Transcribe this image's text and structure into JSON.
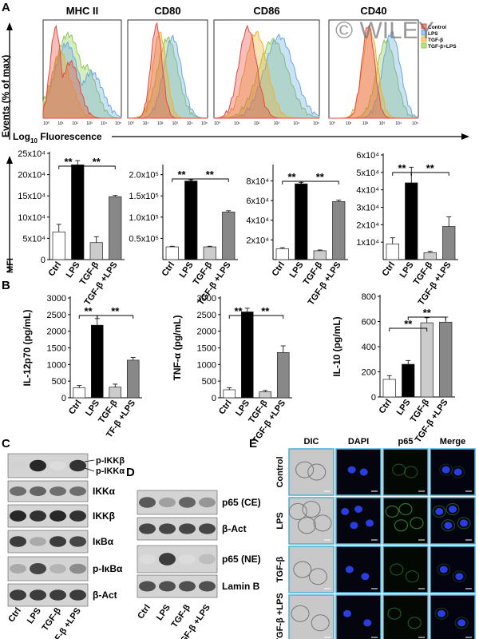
{
  "figure": {
    "panel_letters": [
      "A",
      "B",
      "C",
      "D",
      "E"
    ],
    "watermark": "© WILEY",
    "panel_a": {
      "histograms": {
        "titles": [
          "MHC II",
          "CD80",
          "CD86",
          "CD40"
        ],
        "y_label": "Events (% of max)",
        "x_label": "Log",
        "x_label_sub": "10",
        "x_label_rest": " Fluorescence",
        "tick_labels": [
          "10⁰",
          "10¹",
          "10²",
          "10³",
          "10⁴",
          "10⁵"
        ],
        "legend": [
          {
            "label": "Control",
            "color": "#e8483c"
          },
          {
            "label": "LPS",
            "color": "#6aa8e0"
          },
          {
            "label": "TGF-β",
            "color": "#f0b030"
          },
          {
            "label": "TGF-β+LPS",
            "color": "#8cc850"
          }
        ]
      },
      "mfi_label": "MFI"
    },
    "panel_c": {
      "labels": [
        "p-IKKβ",
        "p-IKKα",
        "IKKα",
        "IKKβ",
        "IκBα",
        "p-IκBα",
        "β-Act"
      ],
      "lanes": [
        "Ctrl",
        "LPS",
        "TGF-β",
        "TGF-β +LPS"
      ]
    },
    "panel_d": {
      "labels": [
        "p65 (CE)",
        "β-Act",
        "p65 (NE)",
        "Lamin B"
      ],
      "lanes": [
        "Ctrl",
        "LPS",
        "TGF-β",
        "TGF-β +LPS"
      ]
    },
    "panel_e": {
      "columns": [
        "DIC",
        "DAPI",
        "p65",
        "Merge"
      ],
      "rows": [
        "Control",
        "LPS",
        "TGF-β",
        "TGF-β +LPS"
      ]
    }
  },
  "chart_data": [
    {
      "type": "bar",
      "title": "MHC II MFI",
      "ylabel": "MFI",
      "categories": [
        "Ctrl",
        "LPS",
        "TGF-β",
        "TGF-β +LPS"
      ],
      "values": [
        65000,
        223000,
        40000,
        148000
      ],
      "errors": [
        18000,
        10000,
        14000,
        3000
      ],
      "ylim": [
        0,
        250000
      ],
      "ticks": [
        0,
        50000,
        100000,
        150000,
        200000,
        250000
      ],
      "tick_labels": [
        "0",
        "5x10⁴",
        "10x10⁴",
        "15x10⁴",
        "20x10⁴",
        "25x10⁴"
      ],
      "significance": [
        {
          "label": "**"
        },
        {
          "label": "**"
        }
      ],
      "fills": [
        "#ffffff",
        "#000000",
        "#cccccc",
        "#888888"
      ]
    },
    {
      "type": "bar",
      "title": "CD80 MFI",
      "categories": [
        "Ctrl",
        "LPS",
        "TGF-β",
        "TGF-β +LPS"
      ],
      "values": [
        30000,
        185000,
        30000,
        112000
      ],
      "errors": [
        1500,
        3000,
        1500,
        3000
      ],
      "ylim": [
        0,
        220000
      ],
      "ticks": [
        50000,
        100000,
        150000,
        200000
      ],
      "tick_labels": [
        "0.5x10⁵",
        "1.0x10⁵",
        "1.5x10⁵",
        "2.0x10⁵"
      ],
      "significance": [
        {
          "label": "**"
        },
        {
          "label": "**"
        }
      ],
      "fills": [
        "#ffffff",
        "#000000",
        "#cccccc",
        "#888888"
      ]
    },
    {
      "type": "bar",
      "title": "CD86 MFI",
      "categories": [
        "Ctrl",
        "LPS",
        "TGF-β",
        "TGF-β +LPS"
      ],
      "values": [
        11000,
        77000,
        9000,
        59000
      ],
      "errors": [
        1200,
        1500,
        800,
        1500
      ],
      "ylim": [
        0,
        95000
      ],
      "ticks": [
        20000,
        40000,
        60000,
        80000
      ],
      "tick_labels": [
        "2x10⁴",
        "4x10⁴",
        "6x10⁴",
        "8x10⁴"
      ],
      "significance": [
        {
          "label": "**"
        },
        {
          "label": "**"
        }
      ],
      "fills": [
        "#ffffff",
        "#000000",
        "#cccccc",
        "#888888"
      ]
    },
    {
      "type": "bar",
      "title": "CD40 MFI",
      "categories": [
        "Ctrl",
        "LPS",
        "TGF-β",
        "TGF-β +LPS"
      ],
      "values": [
        9000,
        44000,
        4000,
        19000
      ],
      "errors": [
        3500,
        9000,
        700,
        5500
      ],
      "ylim": [
        0,
        60000
      ],
      "ticks": [
        10000,
        20000,
        30000,
        40000,
        50000,
        60000
      ],
      "tick_labels": [
        "1x10⁴",
        "2x10⁴",
        "3x10⁴",
        "4x10⁴",
        "5x10⁴",
        "6x10⁴"
      ],
      "significance": [
        {
          "label": "**"
        },
        {
          "label": "**"
        }
      ],
      "fills": [
        "#ffffff",
        "#000000",
        "#cccccc",
        "#888888"
      ]
    },
    {
      "type": "bar",
      "title": "IL-12p70",
      "ylabel": "IL-12p70 (pg/mL)",
      "categories": [
        "Ctrl",
        "LPS",
        "TGF-β",
        "TF-β +LPS"
      ],
      "values": [
        300,
        2180,
        320,
        1130
      ],
      "errors": [
        70,
        200,
        90,
        80
      ],
      "ylim": [
        0,
        3000
      ],
      "ticks": [
        0,
        500,
        1000,
        1500,
        2000,
        2500,
        3000
      ],
      "tick_labels": [
        "0",
        "500",
        "1000",
        "1500",
        "2000",
        "2500",
        "3000"
      ],
      "significance": [
        {
          "label": "**"
        },
        {
          "label": "**"
        }
      ],
      "fills": [
        "#ffffff",
        "#000000",
        "#cccccc",
        "#888888"
      ]
    },
    {
      "type": "bar",
      "title": "TNF-α",
      "ylabel": "TNF-α (pg/mL)",
      "categories": [
        "Ctrl",
        "LPS",
        "TGF-β",
        "TGF-β +LPS"
      ],
      "values": [
        240,
        2580,
        180,
        1360
      ],
      "errors": [
        60,
        110,
        40,
        200
      ],
      "ylim": [
        0,
        3000
      ],
      "ticks": [
        0,
        500,
        1000,
        1500,
        2000,
        2500,
        3000
      ],
      "tick_labels": [
        "0",
        "500",
        "1000",
        "1500",
        "2000",
        "2500",
        "3000"
      ],
      "significance": [
        {
          "label": "**"
        },
        {
          "label": "**"
        }
      ],
      "fills": [
        "#ffffff",
        "#000000",
        "#cccccc",
        "#888888"
      ]
    },
    {
      "type": "bar",
      "title": "IL-10",
      "ylabel": "IL-10 (pg/mL)",
      "categories": [
        "Ctrl",
        "LPS",
        "TGF-β",
        "TGF-β +LPS"
      ],
      "values": [
        140,
        260,
        590,
        595
      ],
      "errors": [
        30,
        30,
        40,
        40
      ],
      "ylim": [
        0,
        800
      ],
      "ticks": [
        0,
        200,
        400,
        600,
        800
      ],
      "tick_labels": [
        "0",
        "200",
        "400",
        "600",
        "800"
      ],
      "significance": [
        {
          "label": "**"
        },
        {
          "label": "**"
        }
      ],
      "fills": [
        "#ffffff",
        "#000000",
        "#cccccc",
        "#888888"
      ]
    }
  ]
}
